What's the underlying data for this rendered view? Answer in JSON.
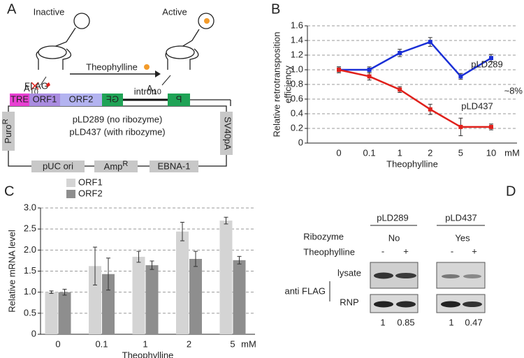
{
  "panel_labels": [
    "A",
    "B",
    "C",
    "D"
  ],
  "panel_a": {
    "inactive": "Inactive",
    "active": "Active",
    "ligand": "Theophylline",
    "tails": [
      {
        "text": "A",
        "sub": "10"
      },
      {
        "text": "A",
        "sub": "10"
      }
    ],
    "flag": "FLAG",
    "tre": "TRE",
    "orf1": "ORF1",
    "orf2": "ORF2",
    "gfp_left": "GF",
    "gfp_right": "P",
    "intron": "intron",
    "plasmid_lines": [
      "pLD289 (no ribozyme)",
      "pLD437 (with ribozyme)"
    ],
    "puro": {
      "text": "Puro",
      "sup": "R"
    },
    "sv40": "SV40pA",
    "puc": "pUC ori",
    "amp": {
      "text": "Amp",
      "sup": "R"
    },
    "ebna": "EBNA-1"
  },
  "chart_data": [
    {
      "type": "line",
      "categories": [
        "0",
        "0.1",
        "1",
        "2",
        "5",
        "10"
      ],
      "x_label": "Theophylline",
      "x_unit": "mM",
      "y_label": [
        "Relative retrotransposition",
        "efficiency"
      ],
      "ylim": [
        0,
        1.6
      ],
      "yticks": [
        0,
        0.2,
        0.4,
        0.6,
        0.8,
        {
          "value": 1,
          "label": "1.0"
        },
        1.2,
        1.4,
        1.6
      ],
      "grid": true,
      "series": [
        {
          "name": "pLD289",
          "color": "#1a2fd6",
          "values": [
            1.0,
            1.0,
            1.23,
            1.38,
            0.91,
            1.16
          ],
          "errors": [
            0.04,
            0.04,
            0.05,
            0.06,
            0.04,
            0.05
          ]
        },
        {
          "name": "pLD437",
          "color": "#e0201b",
          "values": [
            1.0,
            0.91,
            0.73,
            0.46,
            0.22,
            0.22
          ],
          "errors": [
            0.04,
            0.05,
            0.04,
            0.07,
            0.12,
            0.04
          ]
        }
      ],
      "annotations": [
        "~8%"
      ]
    },
    {
      "type": "bar",
      "categories": [
        "0",
        "0.1",
        "1",
        "2",
        "5"
      ],
      "x_label": "Theophylline",
      "x_unit": "mM",
      "y_label": [
        "Relative mRNA level"
      ],
      "ylim": [
        0,
        3
      ],
      "yticks": [
        0,
        0.5,
        {
          "value": 1,
          "label": "1.0"
        },
        1.5,
        {
          "value": 2,
          "label": "2.0"
        },
        2.5,
        {
          "value": 3,
          "label": "3.0"
        }
      ],
      "grid": true,
      "legend": "top-left",
      "series": [
        {
          "name": "ORF1",
          "color": "#d4d4d4",
          "values": [
            1.0,
            1.62,
            1.84,
            2.44,
            2.7
          ],
          "errors": [
            0.03,
            0.45,
            0.13,
            0.22,
            0.08
          ]
        },
        {
          "name": "ORF2",
          "color": "#8e8e8e",
          "values": [
            1.0,
            1.43,
            1.64,
            1.79,
            1.76
          ],
          "errors": [
            0.07,
            0.38,
            0.1,
            0.18,
            0.09
          ]
        }
      ]
    }
  ],
  "panel_d": {
    "headers": [
      "pLD289",
      "pLD437"
    ],
    "ribozyme": {
      "label": "Ribozyme",
      "values": [
        "No",
        "Yes"
      ]
    },
    "theophylline": {
      "label": "Theophylline",
      "lanes": [
        "-",
        "+",
        "-",
        "+"
      ]
    },
    "rows": [
      "lysate",
      "RNP"
    ],
    "antibody": "anti FLAG",
    "quantification": [
      1,
      0.85,
      1,
      0.47
    ]
  }
}
